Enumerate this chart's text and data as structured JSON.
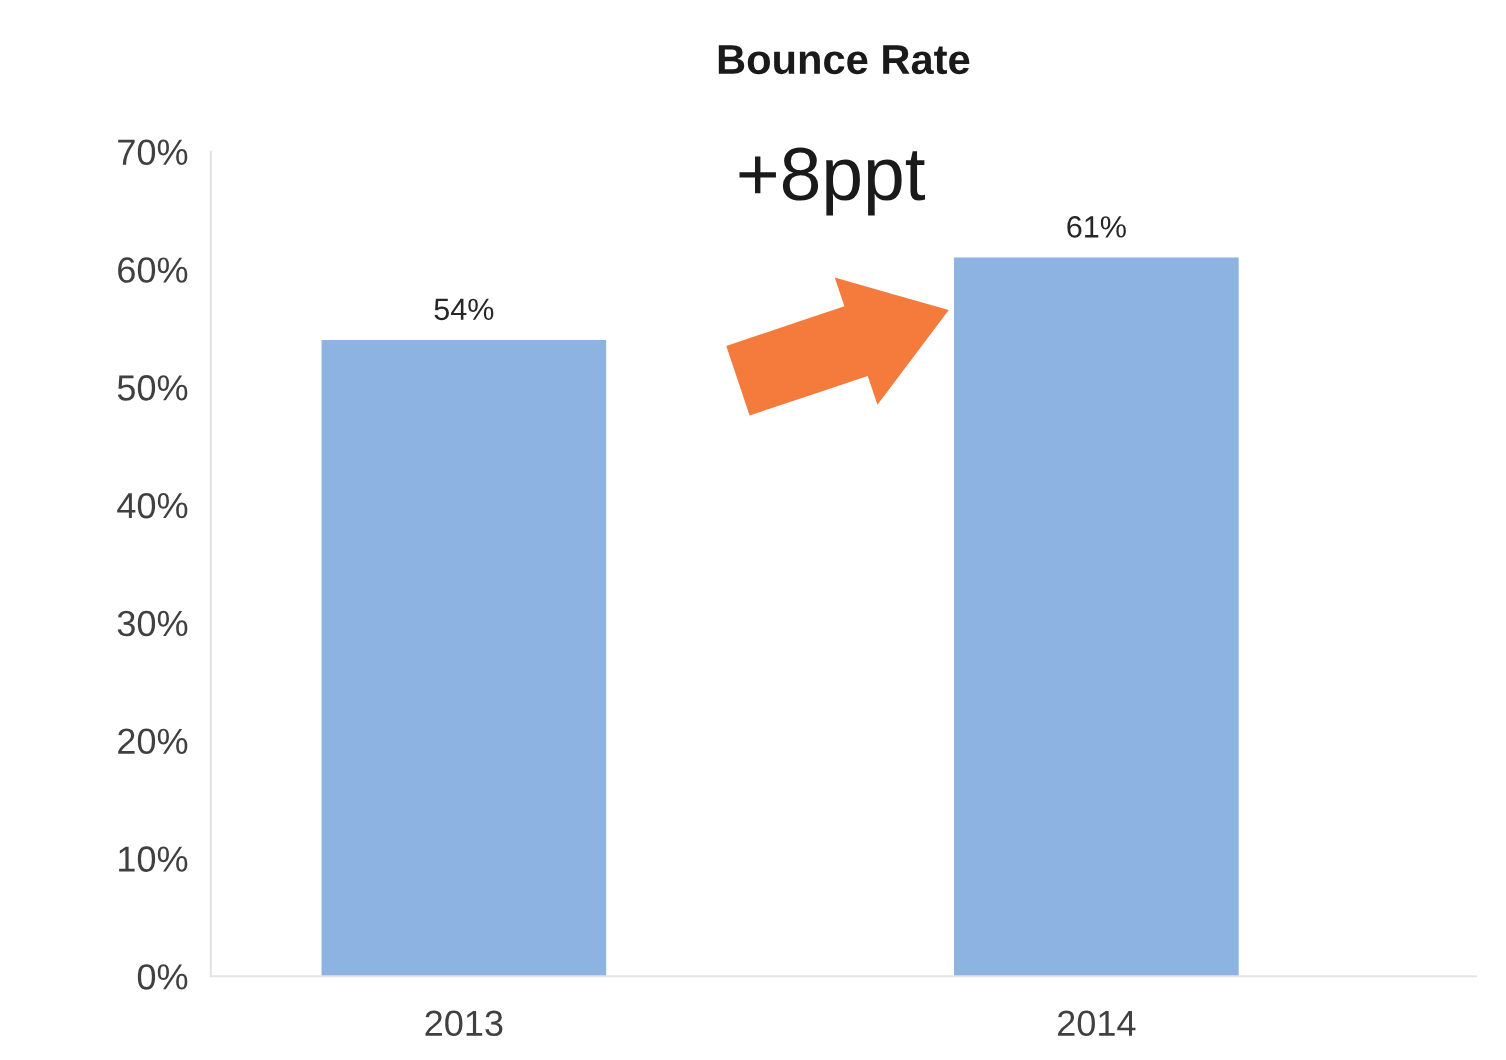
{
  "chart_data": {
    "type": "bar",
    "title": "Bounce Rate",
    "categories": [
      "2013",
      "2014"
    ],
    "values": [
      54,
      61
    ],
    "color": "#8db3e2",
    "value_labels": [
      "54%",
      "61%"
    ],
    "ylim": [
      0,
      70
    ],
    "yticks": [
      {
        "value": 0,
        "label": "0%"
      },
      {
        "value": 10,
        "label": "10%"
      },
      {
        "value": 20,
        "label": "20%"
      },
      {
        "value": 30,
        "label": "30%"
      },
      {
        "value": 40,
        "label": "40%"
      },
      {
        "value": 50,
        "label": "50%"
      },
      {
        "value": 60,
        "label": "60%"
      },
      {
        "value": 70,
        "label": "70%"
      }
    ],
    "annotations": [
      "+8ppt"
    ]
  }
}
